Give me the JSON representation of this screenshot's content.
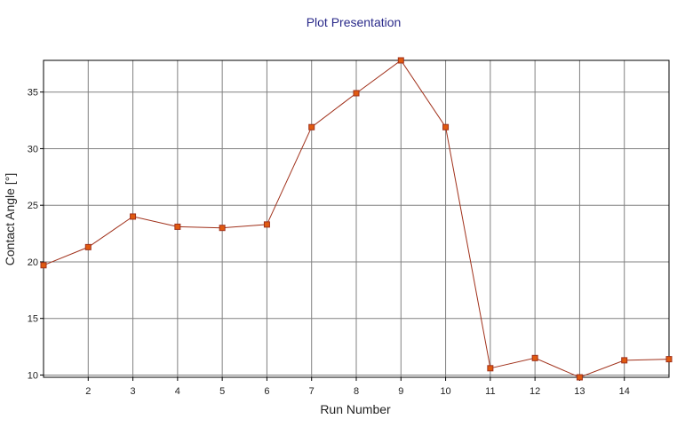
{
  "chart_data": {
    "type": "line",
    "title": "Plot Presentation",
    "xlabel": "Run Number",
    "ylabel": "Contact Angle [°]",
    "x": [
      1,
      2,
      3,
      4,
      5,
      6,
      7,
      8,
      9,
      10,
      11,
      12,
      13,
      14,
      15
    ],
    "series": [
      {
        "values": [
          19.7,
          21.3,
          24.0,
          23.1,
          23.0,
          23.3,
          31.9,
          34.9,
          37.8,
          31.9,
          10.6,
          11.5,
          9.8,
          11.3,
          11.4
        ]
      }
    ],
    "xlim": [
      1,
      15
    ],
    "ylim": [
      9.8,
      37.8
    ],
    "xticks": [
      "2",
      "3",
      "4",
      "5",
      "6",
      "7",
      "8",
      "9",
      "10",
      "11",
      "12",
      "13",
      "14"
    ],
    "yticks": [
      "10",
      "15",
      "20",
      "25",
      "30",
      "35"
    ],
    "grid": true,
    "colors": {
      "line": "#a0301a",
      "marker_fill": "#e05a10",
      "grid": "#808080",
      "title": "#2a2a8a"
    }
  }
}
